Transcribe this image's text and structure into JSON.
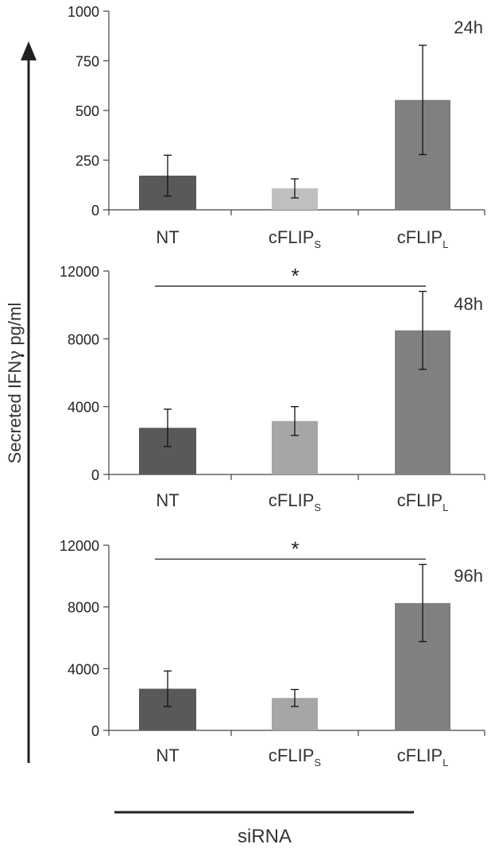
{
  "figure": {
    "ylabel_prefix": "Secreted IFN",
    "ylabel_symbol": "γ",
    "ylabel_suffix": " pg/ml",
    "xlabel": "siRNA",
    "colors": {
      "axis": "#444444",
      "gridline": "#888888",
      "text": "#222222",
      "label": "#333333"
    }
  },
  "chart_data": [
    {
      "type": "bar",
      "title": "24h",
      "categories": [
        {
          "main": "NT",
          "sub": ""
        },
        {
          "main": "cFLIP",
          "sub": "S"
        },
        {
          "main": "cFLIP",
          "sub": "L"
        }
      ],
      "values": [
        172,
        108,
        553
      ],
      "errors": [
        103,
        48,
        275
      ],
      "colors": [
        "#595959",
        "#bfbfbf",
        "#808080"
      ],
      "ylim": [
        0,
        1000
      ],
      "yticks": [
        "0",
        "250",
        "500",
        "750",
        "1000"
      ],
      "significance": null
    },
    {
      "type": "bar",
      "title": "48h",
      "categories": [
        {
          "main": "NT",
          "sub": ""
        },
        {
          "main": "cFLIP",
          "sub": "S"
        },
        {
          "main": "cFLIP",
          "sub": "L"
        }
      ],
      "values": [
        2750,
        3150,
        8500
      ],
      "errors": [
        1100,
        850,
        2300
      ],
      "colors": [
        "#595959",
        "#a6a6a6",
        "#808080"
      ],
      "ylim": [
        0,
        12000
      ],
      "yticks": [
        "0",
        "4000",
        "8000",
        "12000"
      ],
      "significance": {
        "label": "*",
        "from": 0,
        "to": 2,
        "y": 11200
      }
    },
    {
      "type": "bar",
      "title": "96h",
      "categories": [
        {
          "main": "NT",
          "sub": ""
        },
        {
          "main": "cFLIP",
          "sub": "S"
        },
        {
          "main": "cFLIP",
          "sub": "L"
        }
      ],
      "values": [
        2700,
        2100,
        8250
      ],
      "errors": [
        1150,
        550,
        2500
      ],
      "colors": [
        "#595959",
        "#a6a6a6",
        "#808080"
      ],
      "ylim": [
        0,
        12000
      ],
      "yticks": [
        "0",
        "4000",
        "8000",
        "12000"
      ],
      "significance": {
        "label": "*",
        "from": 0,
        "to": 2,
        "y": 11200
      }
    }
  ]
}
